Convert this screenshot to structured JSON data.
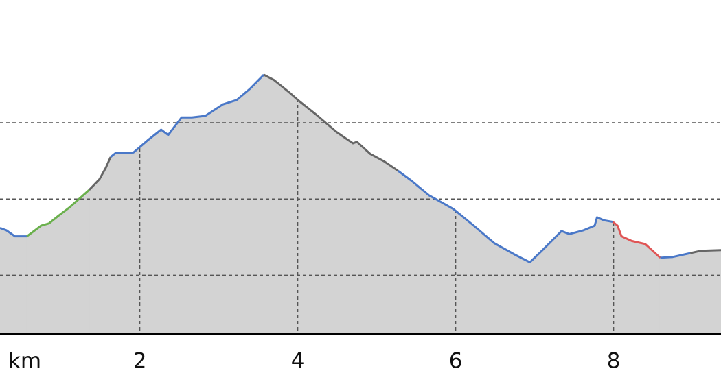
{
  "chart_data": {
    "type": "elevation-profile",
    "x_unit": "km",
    "xlim": [
      0.23,
      9.36
    ],
    "xticks": [
      2,
      4,
      6,
      8
    ],
    "ylim": [
      23,
      461
    ],
    "ygrid": [
      100,
      200,
      300
    ],
    "fill_color": "#d3d3d3",
    "series": [
      {
        "color": "#4a78c8",
        "x": [
          0.23,
          0.31,
          0.42,
          0.57
        ],
        "values": [
          162,
          159,
          151,
          151
        ]
      },
      {
        "color": "#6ab04c",
        "x": [
          0.57,
          0.66,
          0.75,
          0.85,
          0.97,
          1.11,
          1.23,
          1.36
        ],
        "values": [
          151,
          158,
          165,
          168,
          178,
          189,
          200,
          212
        ]
      },
      {
        "color": "#666666",
        "x": [
          1.36,
          1.49,
          1.57,
          1.63
        ],
        "values": [
          212,
          226,
          241,
          255
        ]
      },
      {
        "color": "#4a78c8",
        "x": [
          1.63,
          1.69,
          1.92,
          2.1,
          2.27,
          2.36,
          2.44,
          2.53,
          2.66,
          2.83,
          3.05,
          3.23,
          3.4,
          3.57
        ],
        "values": [
          255,
          260,
          261,
          277,
          291,
          284,
          295,
          307,
          307,
          309,
          324,
          330,
          345,
          363
        ]
      },
      {
        "color": "#666666",
        "x": [
          3.57,
          3.7,
          3.88,
          4.0,
          4.23,
          4.49,
          4.7,
          4.75,
          4.92,
          5.1,
          5.27
        ],
        "values": [
          363,
          356,
          341,
          330,
          311,
          288,
          273,
          275,
          259,
          249,
          237
        ]
      },
      {
        "color": "#4a78c8",
        "x": [
          5.27,
          5.44,
          5.66,
          5.97,
          6.23,
          6.49,
          6.75,
          6.94,
          7.1,
          7.34,
          7.44,
          7.62,
          7.76,
          7.79,
          7.88,
          7.99
        ],
        "values": [
          237,
          224,
          205,
          187,
          165,
          142,
          127,
          117,
          133,
          158,
          154,
          159,
          165,
          176,
          172,
          170
        ]
      },
      {
        "color": "#e05555",
        "x": [
          7.99,
          8.05,
          8.1,
          8.23,
          8.4,
          8.59
        ],
        "values": [
          170,
          165,
          151,
          145,
          141,
          123
        ]
      },
      {
        "color": "#4a78c8",
        "x": [
          8.59,
          8.75,
          8.97
        ],
        "values": [
          123,
          124,
          129
        ]
      },
      {
        "color": "#666666",
        "x": [
          8.97,
          9.1,
          9.36
        ],
        "values": [
          129,
          132,
          133
        ]
      }
    ]
  }
}
